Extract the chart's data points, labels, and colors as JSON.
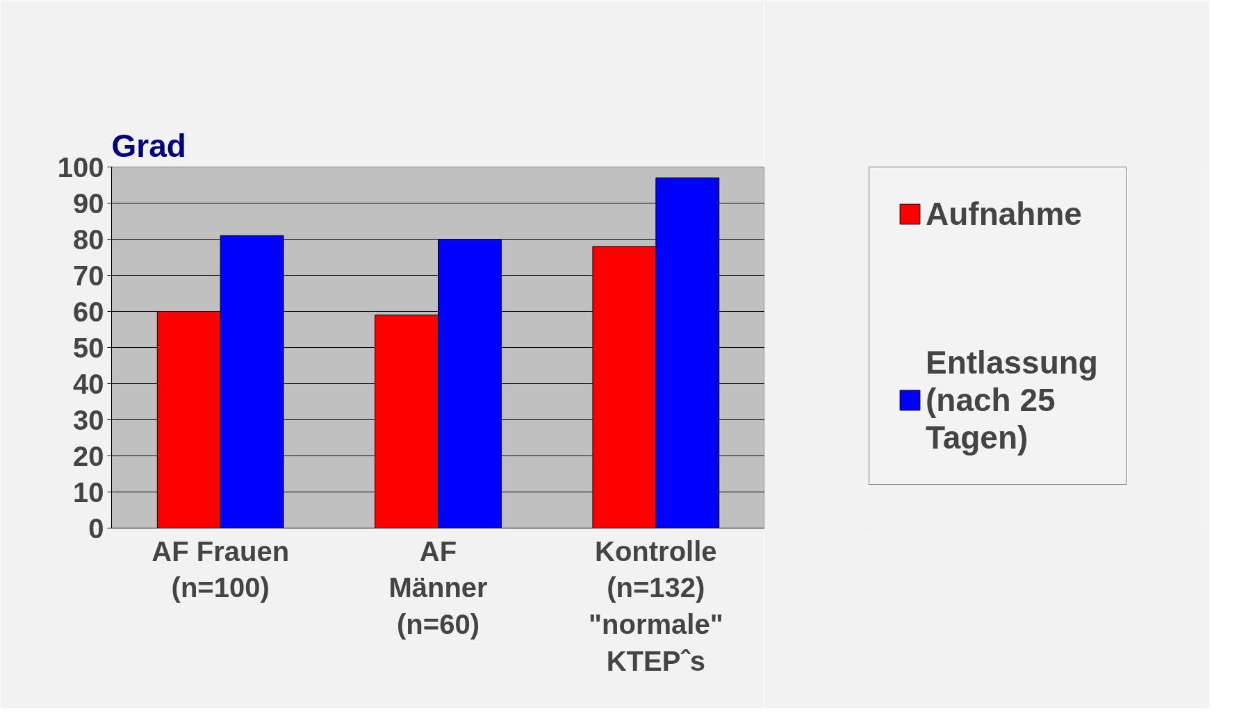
{
  "chart_data": {
    "type": "bar",
    "title": "Grad",
    "categories": [
      "AF Frauen\n(n=100)",
      "AF\nMänner\n(n=60)",
      "Kontrolle\n(n=132)\n\"normale\"\nKTEPˆs"
    ],
    "series": [
      {
        "name": "Aufnahme",
        "color": "#ff0000",
        "values": [
          60,
          59,
          78
        ]
      },
      {
        "name": "Entlassung\n(nach 25\nTagen)",
        "color": "#0000ff",
        "values": [
          81,
          80,
          97
        ]
      }
    ],
    "ylim": [
      0,
      100
    ],
    "yticks": [
      0,
      10,
      20,
      30,
      40,
      50,
      60,
      70,
      80,
      90,
      100
    ],
    "grid": "y",
    "legend": "right"
  }
}
